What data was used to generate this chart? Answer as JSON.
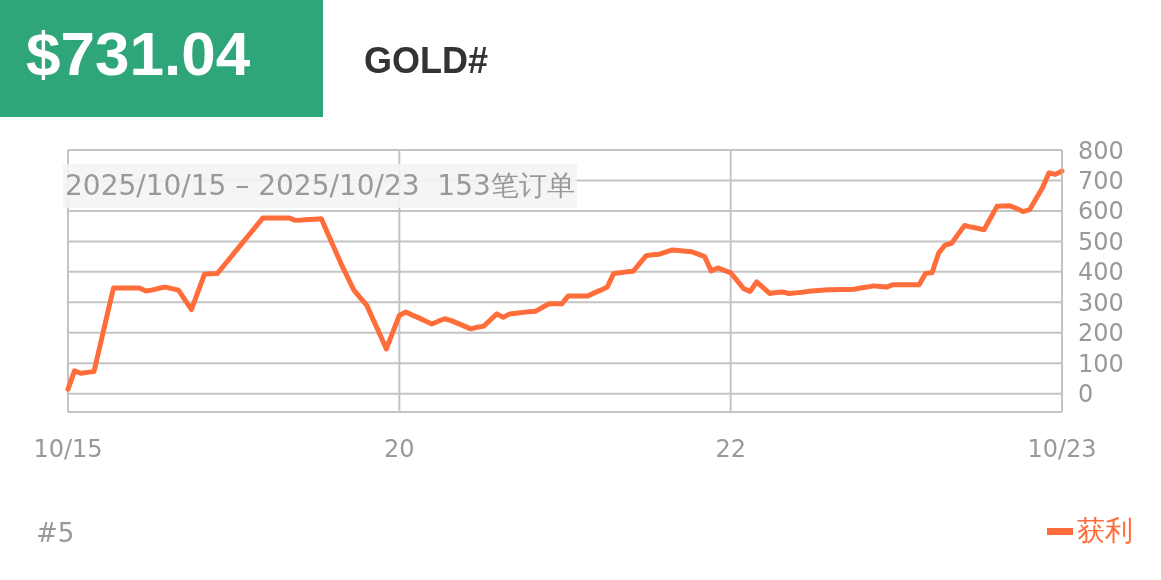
{
  "chart_data": {
    "type": "line",
    "title": "$731.04",
    "subtitle": "GOLD#",
    "annotations": [
      "2025/10/15 – 2025/10/23  153笔订单",
      "#5"
    ],
    "categories": [
      "10/15",
      null,
      null,
      null,
      null,
      null,
      null,
      null,
      null,
      null,
      null,
      null,
      null,
      null,
      null,
      null,
      null,
      null,
      null,
      null,
      null,
      null,
      null,
      null,
      null,
      null,
      null,
      null,
      null,
      null,
      null,
      null,
      null,
      null,
      null,
      null,
      null,
      null,
      null,
      null,
      null,
      null,
      null,
      null,
      null,
      null,
      null,
      null,
      null,
      null,
      null,
      "20",
      null,
      null,
      null,
      null,
      null,
      null,
      null,
      null,
      null,
      null,
      null,
      null,
      null,
      null,
      null,
      null,
      null,
      null,
      null,
      null,
      null,
      null,
      null,
      null,
      null,
      null,
      null,
      null,
      null,
      null,
      null,
      null,
      null,
      null,
      null,
      null,
      null,
      null,
      null,
      null,
      null,
      null,
      null,
      null,
      null,
      null,
      null,
      null,
      null,
      null,
      "22",
      null,
      null,
      null,
      null,
      null,
      null,
      null,
      null,
      null,
      null,
      null,
      null,
      null,
      null,
      null,
      null,
      null,
      null,
      null,
      null,
      null,
      null,
      null,
      null,
      null,
      null,
      null,
      null,
      null,
      null,
      null,
      null,
      null,
      null,
      null,
      null,
      null,
      null,
      null,
      null,
      null,
      null,
      null,
      null,
      null,
      null,
      null,
      null,
      null,
      null,
      "10/23"
    ],
    "ylim": [
      -60,
      800
    ],
    "yticks": [
      0,
      100,
      200,
      300,
      400,
      500,
      600,
      700,
      800
    ],
    "grid": true,
    "legend": "bottom right",
    "marker": "none",
    "line_style": "solid",
    "series": [
      {
        "name": "获利",
        "color": "#ff6d3a",
        "values": [
          15,
          75,
          67,
          70,
          73,
          164,
          256,
          347,
          347,
          347,
          347,
          347,
          337,
          341,
          346,
          350,
          345,
          340,
          308,
          276,
          334,
          392,
          394,
          395,
          421,
          447,
          473,
          499,
          525,
          551,
          577,
          577,
          577,
          577,
          577,
          569,
          570,
          572,
          573,
          574,
          525,
          477,
          428,
          384,
          340,
          315,
          290,
          242,
          195,
          147,
          202,
          257,
          268,
          258,
          249,
          239,
          229,
          238,
          246,
          240,
          231,
          222,
          213,
          218,
          222,
          242,
          262,
          251,
          262,
          264,
          267,
          269,
          271,
          283,
          295,
          295,
          295,
          321,
          321,
          321,
          321,
          331,
          340,
          350,
          395,
          397,
          400,
          402,
          428,
          453,
          456,
          458,
          465,
          472,
          470,
          468,
          466,
          458,
          450,
          403,
          413,
          405,
          397,
          371,
          345,
          336,
          367,
          348,
          329,
          332,
          334,
          329,
          331,
          333,
          336,
          338,
          340,
          341,
          341,
          342,
          342,
          343,
          347,
          350,
          354,
          352,
          350,
          358,
          358,
          358,
          358,
          358,
          395,
          397,
          461,
          488,
          494,
          523,
          552,
          547,
          543,
          538,
          577,
          615,
          616,
          617,
          608,
          598,
          604,
          640,
          676,
          725,
          720,
          731
        ]
      }
    ]
  }
}
